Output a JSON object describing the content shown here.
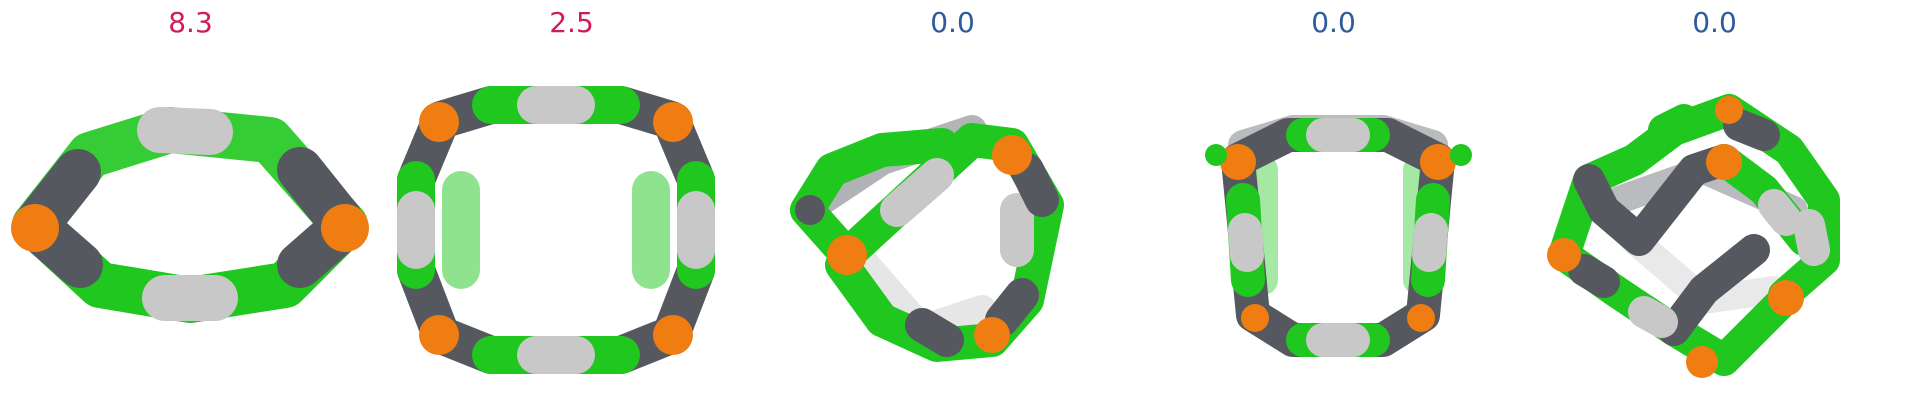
{
  "panels": [
    {
      "value": "8.3",
      "level": "high"
    },
    {
      "value": "2.5",
      "level": "high"
    },
    {
      "value": "0.0",
      "level": "zero"
    },
    {
      "value": "0.0",
      "level": "zero"
    },
    {
      "value": "0.0",
      "level": "zero"
    }
  ],
  "colors": {
    "high_value_text": "#d01c5b",
    "zero_value_text": "#2f5a9b",
    "segment_green": "#1fc71f",
    "segment_dark_gray": "#55585e",
    "segment_light_gray": "#c8c8c8",
    "joint_orange": "#f07d12"
  }
}
